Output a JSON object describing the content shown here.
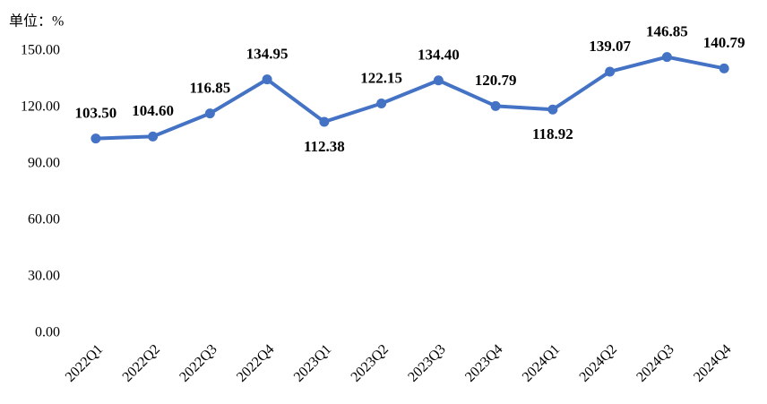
{
  "chart_data": {
    "type": "line",
    "unit_label": "单位：%",
    "categories": [
      "2022Q1",
      "2022Q2",
      "2022Q3",
      "2022Q4",
      "2023Q1",
      "2023Q2",
      "2023Q3",
      "2023Q4",
      "2024Q1",
      "2024Q2",
      "2024Q3",
      "2024Q4"
    ],
    "series": [
      {
        "name": null,
        "color": "#4472c4",
        "values": [
          103.5,
          104.6,
          116.85,
          134.95,
          112.38,
          122.15,
          134.4,
          120.79,
          118.92,
          139.07,
          146.85,
          140.79
        ],
        "value_labels": [
          "103.50",
          "104.60",
          "116.85",
          "134.95",
          "112.38",
          "122.15",
          "134.40",
          "120.79",
          "118.92",
          "139.07",
          "146.85",
          "140.79"
        ]
      }
    ],
    "ylim": [
      0,
      150
    ],
    "yticks": [
      {
        "value": 0,
        "label": "0.00"
      },
      {
        "value": 30,
        "label": "30.00"
      },
      {
        "value": 60,
        "label": "60.00"
      },
      {
        "value": 90,
        "label": "90.00"
      },
      {
        "value": 120,
        "label": "120.00"
      },
      {
        "value": 150,
        "label": "150.00"
      }
    ],
    "grid": false
  }
}
